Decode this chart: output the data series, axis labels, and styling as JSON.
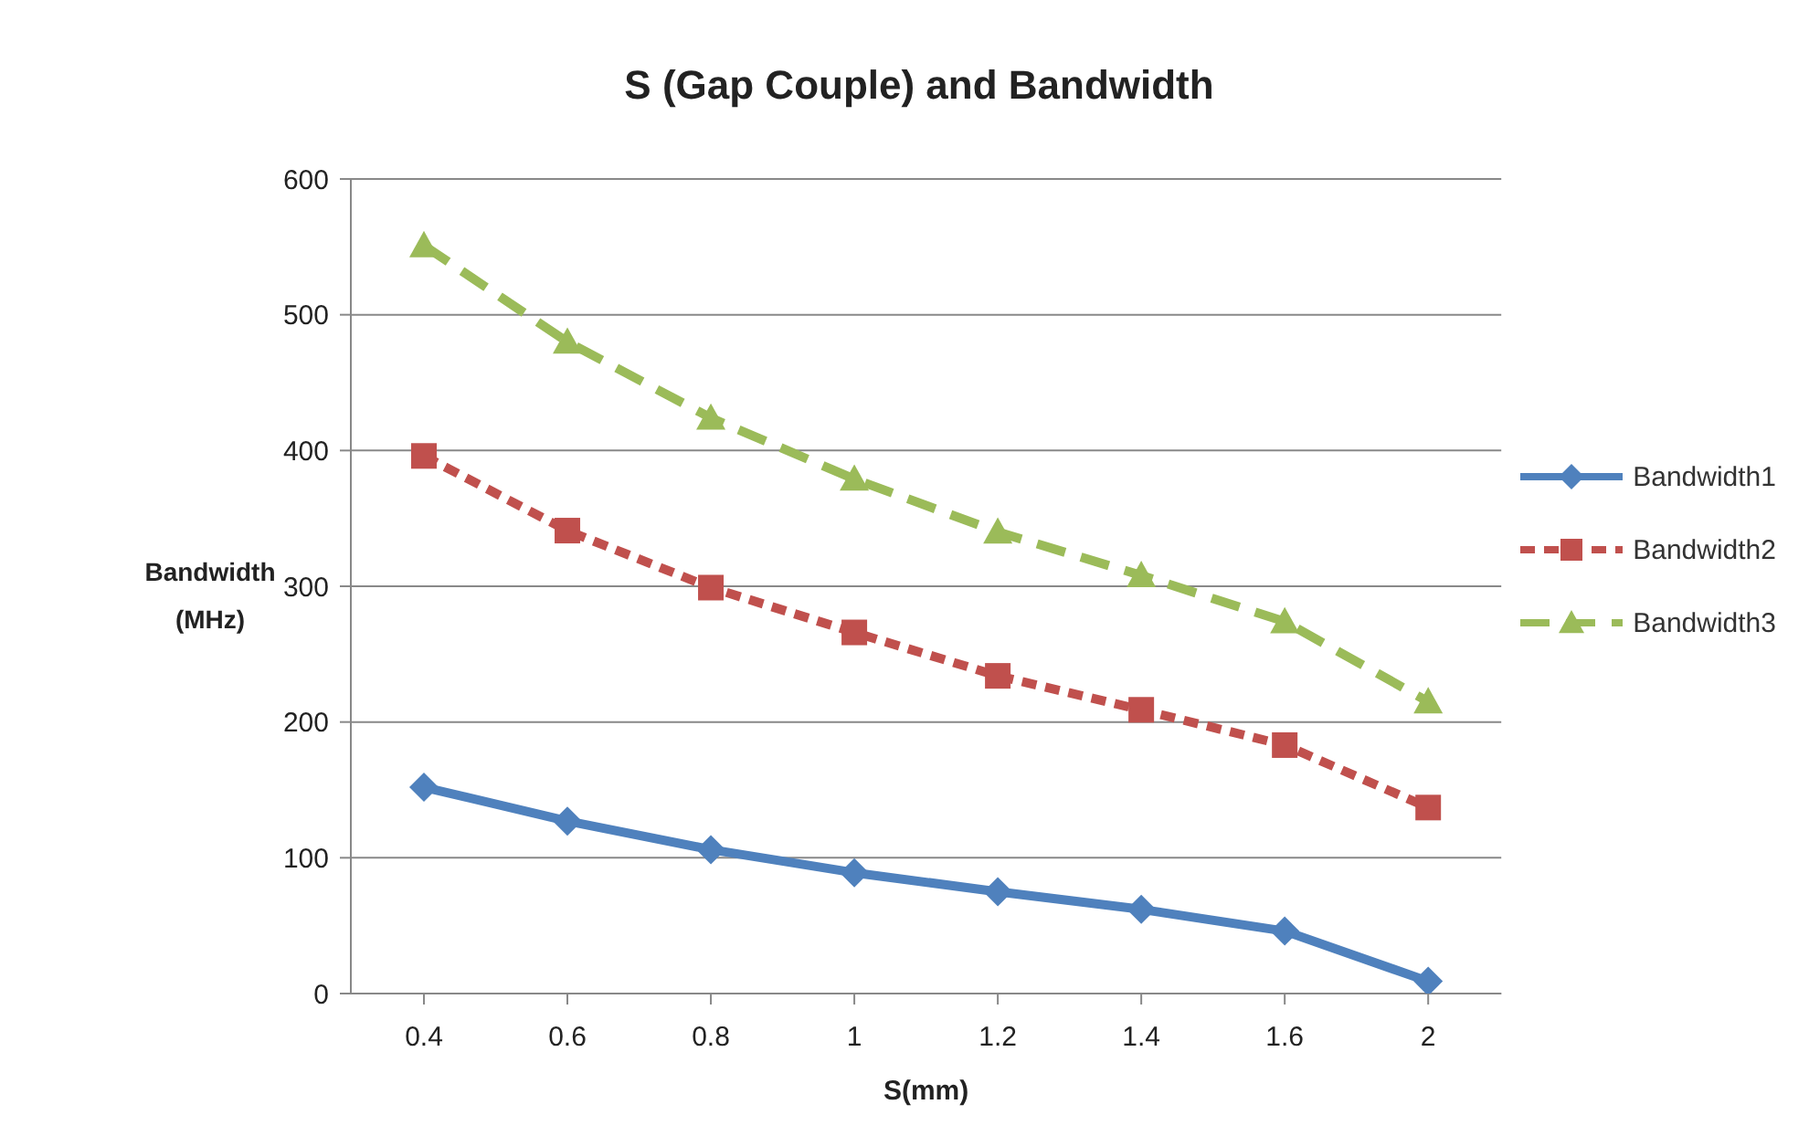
{
  "chart_data": {
    "type": "line",
    "title": "S (Gap Couple) and Bandwidth",
    "xlabel": "S(mm)",
    "ylabel": "Bandwidth (MHz)",
    "categories": [
      "0.4",
      "0.6",
      "0.8",
      "1",
      "1.2",
      "1.4",
      "1.6",
      "2"
    ],
    "series": [
      {
        "name": "Bandwidth1",
        "color": "#4f81bd",
        "marker": "diamond",
        "line_style": "solid",
        "values": [
          152,
          127,
          106,
          89,
          75,
          62,
          46,
          9
        ]
      },
      {
        "name": "Bandwidth2",
        "color": "#c0504d",
        "marker": "square",
        "line_style": "dotted",
        "values": [
          396,
          341,
          299,
          266,
          234,
          209,
          183,
          137
        ]
      },
      {
        "name": "Bandwidth3",
        "color": "#9bbb59",
        "marker": "triangle",
        "line_style": "dashed",
        "values": [
          551,
          480,
          424,
          379,
          340,
          308,
          274,
          215
        ]
      }
    ],
    "ylim": [
      0,
      600
    ],
    "yticks": [
      0,
      100,
      200,
      300,
      400,
      500,
      600
    ],
    "grid": "y",
    "legend": "right"
  }
}
